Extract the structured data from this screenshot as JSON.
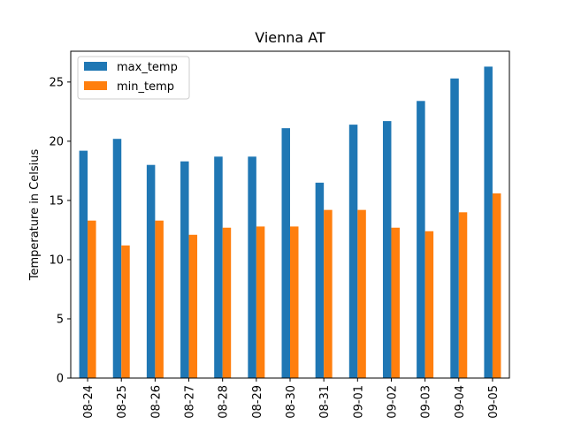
{
  "chart_data": {
    "type": "bar",
    "title": "Vienna AT",
    "xlabel": "",
    "ylabel": "Temperature in Celsius",
    "categories": [
      "08-24",
      "08-25",
      "08-26",
      "08-27",
      "08-28",
      "08-29",
      "08-30",
      "08-31",
      "09-01",
      "09-02",
      "09-03",
      "09-04",
      "09-05"
    ],
    "series": [
      {
        "name": "max_temp",
        "color": "#1f77b4",
        "values": [
          19.2,
          20.2,
          18.0,
          18.3,
          18.7,
          18.7,
          21.1,
          16.5,
          21.4,
          21.7,
          23.4,
          25.3,
          26.3
        ]
      },
      {
        "name": "min_temp",
        "color": "#ff7f0e",
        "values": [
          13.3,
          11.2,
          13.3,
          12.1,
          12.7,
          12.8,
          12.8,
          14.2,
          14.2,
          12.7,
          12.4,
          14.0,
          15.6
        ]
      }
    ],
    "ylim": [
      0,
      27.6
    ],
    "yticks": [
      0,
      5,
      10,
      15,
      20,
      25
    ],
    "legend_position": "top-left",
    "grid": false
  }
}
